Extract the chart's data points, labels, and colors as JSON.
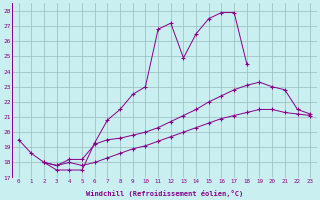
{
  "xlabel": "Windchill (Refroidissement éolien,°C)",
  "ylabel": "",
  "xlim": [
    -0.5,
    23.5
  ],
  "ylim": [
    17,
    28.5
  ],
  "yticks": [
    17,
    18,
    19,
    20,
    21,
    22,
    23,
    24,
    25,
    26,
    27,
    28
  ],
  "xticks": [
    0,
    1,
    2,
    3,
    4,
    5,
    6,
    7,
    8,
    9,
    10,
    11,
    12,
    13,
    14,
    15,
    16,
    17,
    18,
    19,
    20,
    21,
    22,
    23
  ],
  "bg_color": "#c9eff1",
  "line_color": "#880088",
  "grid_color": "#99bbbb",
  "lines": [
    {
      "x": [
        0,
        1,
        2,
        3,
        4,
        5,
        6,
        7,
        8,
        9,
        10,
        11,
        12,
        13,
        14,
        15,
        16,
        17,
        18
      ],
      "y": [
        19.5,
        18.6,
        18.0,
        17.5,
        17.5,
        17.5,
        19.3,
        20.8,
        21.5,
        22.5,
        23.0,
        26.8,
        27.2,
        24.9,
        26.5,
        27.5,
        27.9,
        27.9,
        24.5
      ]
    },
    {
      "x": [
        2,
        3,
        4,
        5,
        6,
        7,
        8,
        9,
        10,
        11,
        12,
        13,
        14,
        15,
        16,
        17,
        18,
        19,
        20,
        21,
        22,
        23
      ],
      "y": [
        18.0,
        17.8,
        18.2,
        18.2,
        19.2,
        19.5,
        19.6,
        19.8,
        20.0,
        20.3,
        20.7,
        21.1,
        21.5,
        22.0,
        22.4,
        22.8,
        23.1,
        23.3,
        23.0,
        22.8,
        21.5,
        21.2
      ]
    },
    {
      "x": [
        2,
        3,
        4,
        5,
        6,
        7,
        8,
        9,
        10,
        11,
        12,
        13,
        14,
        15,
        16,
        17,
        18,
        19,
        20,
        21,
        22,
        23
      ],
      "y": [
        18.0,
        17.8,
        18.0,
        17.8,
        18.0,
        18.3,
        18.6,
        18.9,
        19.1,
        19.4,
        19.7,
        20.0,
        20.3,
        20.6,
        20.9,
        21.1,
        21.3,
        21.5,
        21.5,
        21.3,
        21.2,
        21.1
      ]
    }
  ]
}
